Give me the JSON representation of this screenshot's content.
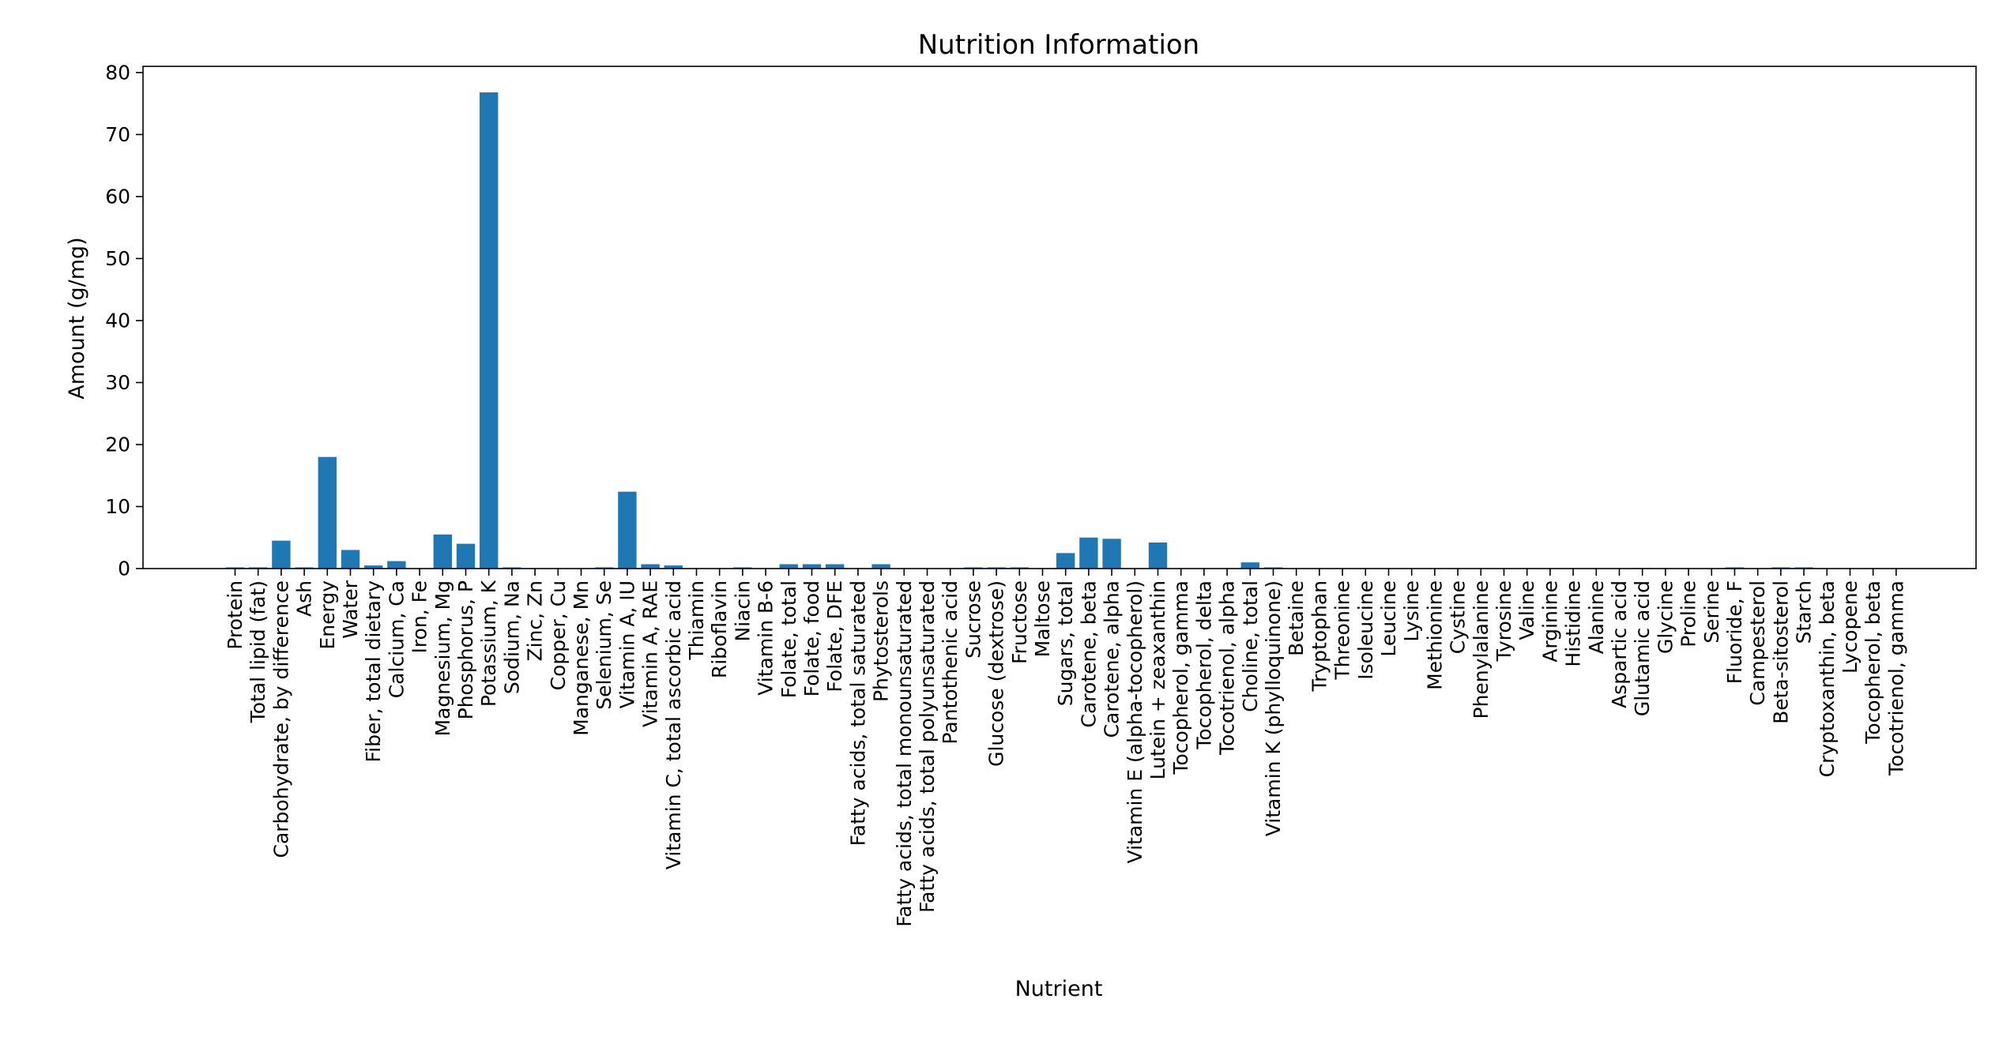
{
  "chart_data": {
    "type": "bar",
    "title": "Nutrition Information",
    "xlabel": "Nutrient",
    "ylabel": "Amount (g/mg)",
    "ylim": [
      0,
      81
    ],
    "yticks": [
      0,
      10,
      20,
      30,
      40,
      50,
      60,
      70,
      80
    ],
    "grid": false,
    "bar_color": "#1f77b4",
    "categories": [
      "Protein",
      "Total lipid (fat)",
      "Carbohydrate, by difference",
      "Ash",
      "Energy",
      "Water",
      "Fiber, total dietary",
      "Calcium, Ca",
      "Iron, Fe",
      "Magnesium, Mg",
      "Phosphorus, P",
      "Potassium, K",
      "Sodium, Na",
      "Zinc, Zn",
      "Copper, Cu",
      "Manganese, Mn",
      "Selenium, Se",
      "Vitamin A, IU",
      "Vitamin A, RAE",
      "Vitamin C, total ascorbic acid",
      "Thiamin",
      "Riboflavin",
      "Niacin",
      "Vitamin B-6",
      "Folate, total",
      "Folate, food",
      "Folate, DFE",
      "Fatty acids, total saturated",
      "Phytosterols",
      "Fatty acids, total monounsaturated",
      "Fatty acids, total polyunsaturated",
      "Pantothenic acid",
      "Sucrose",
      "Glucose (dextrose)",
      "Fructose",
      "Maltose",
      "Sugars, total",
      "Carotene, beta",
      "Carotene, alpha",
      "Vitamin E (alpha-tocopherol)",
      "Lutein + zeaxanthin",
      "Tocopherol, gamma",
      "Tocopherol, delta",
      "Tocotrienol, alpha",
      "Choline, total",
      "Vitamin K (phylloquinone)",
      "Betaine",
      "Tryptophan",
      "Threonine",
      "Isoleucine",
      "Leucine",
      "Lysine",
      "Methionine",
      "Cystine",
      "Phenylalanine",
      "Tyrosine",
      "Valine",
      "Arginine",
      "Histidine",
      "Alanine",
      "Aspartic acid",
      "Glutamic acid",
      "Glycine",
      "Proline",
      "Serine",
      "Fluoride, F",
      "Campesterol",
      "Beta-sitosterol",
      "Starch",
      "Cryptoxanthin, beta",
      "Lycopene",
      "Tocopherol, beta",
      "Tocotrienol, gamma"
    ],
    "values": [
      0.2,
      0.2,
      4.5,
      0.2,
      18.0,
      3.0,
      0.5,
      1.2,
      0.05,
      5.5,
      4.0,
      76.8,
      0.2,
      0.05,
      0.02,
      0.05,
      0.2,
      12.4,
      0.7,
      0.5,
      0.03,
      0.02,
      0.2,
      0.04,
      0.7,
      0.7,
      0.7,
      0.03,
      0.7,
      0.02,
      0.03,
      0.05,
      0.2,
      0.2,
      0.2,
      0.05,
      2.5,
      5.0,
      4.8,
      0.05,
      4.2,
      0.02,
      0.01,
      0.01,
      1.0,
      0.2,
      0.05,
      0.01,
      0.02,
      0.02,
      0.03,
      0.03,
      0.01,
      0.01,
      0.02,
      0.01,
      0.02,
      0.03,
      0.01,
      0.02,
      0.05,
      0.08,
      0.02,
      0.02,
      0.02,
      0.2,
      0.05,
      0.2,
      0.2,
      0.01,
      0.01,
      0.01,
      0.01
    ]
  }
}
